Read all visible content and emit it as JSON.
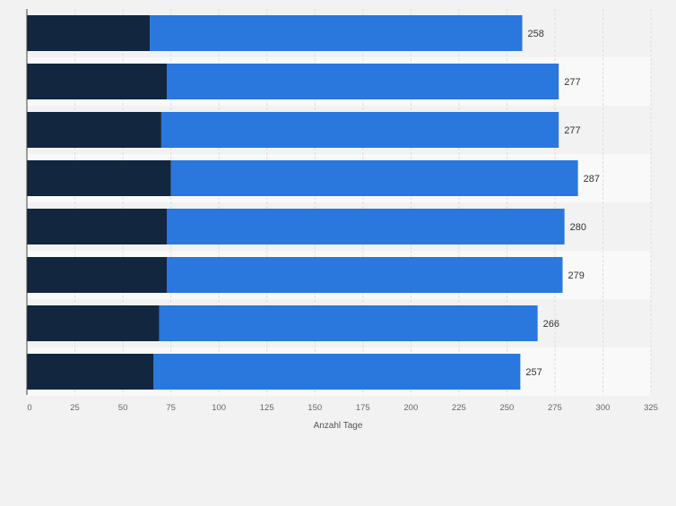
{
  "chart_data": {
    "type": "bar",
    "orientation": "horizontal",
    "stacked": true,
    "categories": [
      "",
      "",
      "",
      "",
      "",
      "",
      "",
      ""
    ],
    "series": [
      {
        "values": [
          64,
          73,
          70,
          75,
          73,
          73,
          69,
          66
        ],
        "color": "#12263f"
      },
      {
        "values": [
          194,
          204,
          207,
          212,
          207,
          206,
          197,
          191
        ],
        "color": "#2a77dd"
      }
    ],
    "totals": [
      258,
      277,
      277,
      287,
      280,
      279,
      266,
      257
    ],
    "total_labels": [
      "258",
      "277",
      "277",
      "287",
      "280",
      "279",
      "266",
      "257"
    ],
    "xlabel": "Anzahl Tage",
    "ylabel": "",
    "xlim": [
      0,
      325
    ],
    "x_ticks": [
      0,
      25,
      50,
      75,
      100,
      125,
      150,
      175,
      200,
      225,
      250,
      275,
      300,
      325
    ],
    "x_tick_labels": [
      "0",
      "25",
      "50",
      "75",
      "100",
      "125",
      "150",
      "175",
      "200",
      "225",
      "250",
      "275",
      "300",
      "325"
    ],
    "grid": true,
    "legend": "none"
  }
}
